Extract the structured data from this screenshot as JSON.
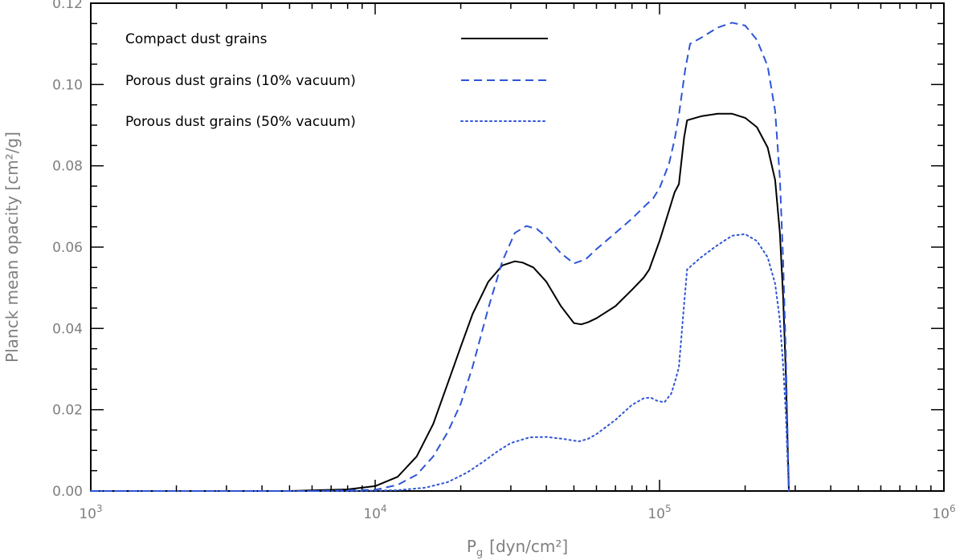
{
  "chart_data": {
    "type": "line",
    "xlabel": "P",
    "xlabel_sub": "g",
    "xlabel_unit": "[dyn/cm²]",
    "ylabel": "Planck mean opacity [cm²/g]",
    "xscale": "log",
    "xlim": [
      1000,
      1000000
    ],
    "ylim": [
      0,
      0.12
    ],
    "grid": false,
    "legend_position": "top-left",
    "x_ticks": [
      {
        "value": 1000,
        "base": "10",
        "exp": "3"
      },
      {
        "value": 10000,
        "base": "10",
        "exp": "4"
      },
      {
        "value": 100000,
        "base": "10",
        "exp": "5"
      },
      {
        "value": 1000000,
        "base": "10",
        "exp": "6"
      }
    ],
    "y_ticks": [
      {
        "value": 0.0,
        "label": "0.00"
      },
      {
        "value": 0.02,
        "label": "0.02"
      },
      {
        "value": 0.04,
        "label": "0.04"
      },
      {
        "value": 0.06,
        "label": "0.06"
      },
      {
        "value": 0.08,
        "label": "0.08"
      },
      {
        "value": 0.1,
        "label": "0.10"
      },
      {
        "value": 0.12,
        "label": "0.12"
      }
    ],
    "series": [
      {
        "name": "Compact dust grains",
        "color": "#000000",
        "dash": "solid",
        "x": [
          1000,
          5000,
          8000,
          10000,
          12000,
          14000,
          16000,
          18000,
          20000,
          22000,
          25000,
          28000,
          31000,
          33000,
          36000,
          40000,
          45000,
          50000,
          53000,
          56000,
          60000,
          70000,
          80000,
          88000,
          92000,
          100000,
          108000,
          113000,
          117000,
          122000,
          125000,
          140000,
          160000,
          180000,
          200000,
          220000,
          240000,
          255000,
          265000,
          272000,
          278000,
          282000,
          285000
        ],
        "y": [
          0.0,
          0.0,
          0.0004,
          0.0012,
          0.0035,
          0.0085,
          0.0165,
          0.0265,
          0.0355,
          0.0435,
          0.0515,
          0.0555,
          0.0565,
          0.0562,
          0.055,
          0.0515,
          0.0455,
          0.0413,
          0.041,
          0.0415,
          0.0425,
          0.0455,
          0.0495,
          0.0525,
          0.0545,
          0.0615,
          0.069,
          0.0735,
          0.0755,
          0.087,
          0.0912,
          0.0922,
          0.0928,
          0.0928,
          0.0918,
          0.0895,
          0.0845,
          0.0765,
          0.0635,
          0.048,
          0.029,
          0.012,
          0.0
        ]
      },
      {
        "name": "Porous dust grains (10% vacuum)",
        "color": "#2e55d6",
        "dash": "dashed",
        "x": [
          1000,
          6000,
          10000,
          12000,
          14000,
          16000,
          18000,
          20000,
          22000,
          25000,
          28000,
          31000,
          34000,
          37000,
          40000,
          45000,
          50000,
          55000,
          60000,
          70000,
          80000,
          90000,
          95000,
          100000,
          108000,
          113000,
          117000,
          123000,
          128000,
          140000,
          160000,
          180000,
          200000,
          220000,
          240000,
          255000,
          265000,
          272000,
          278000,
          282000,
          285000
        ],
        "y": [
          0.0,
          0.0,
          0.0003,
          0.0015,
          0.004,
          0.0085,
          0.0145,
          0.0215,
          0.0305,
          0.045,
          0.0565,
          0.0635,
          0.0652,
          0.0645,
          0.0625,
          0.0585,
          0.056,
          0.057,
          0.0595,
          0.0635,
          0.067,
          0.0705,
          0.072,
          0.0745,
          0.0805,
          0.0865,
          0.0925,
          0.1035,
          0.11,
          0.1115,
          0.114,
          0.1152,
          0.1145,
          0.111,
          0.1045,
          0.0935,
          0.077,
          0.057,
          0.034,
          0.014,
          0.0
        ]
      },
      {
        "name": "Porous dust grains (50% vacuum)",
        "color": "#2e55d6",
        "dash": "dotted",
        "x": [
          1000,
          8000,
          12000,
          15000,
          18000,
          21000,
          24000,
          27000,
          30000,
          35000,
          40000,
          46000,
          52000,
          56000,
          60000,
          70000,
          80000,
          88000,
          93000,
          98000,
          104000,
          110000,
          114000,
          117000,
          122000,
          125000,
          140000,
          160000,
          180000,
          200000,
          220000,
          240000,
          255000,
          265000,
          272000,
          278000,
          282000,
          285000
        ],
        "y": [
          0.0,
          0.0,
          0.0002,
          0.0008,
          0.0022,
          0.0045,
          0.0072,
          0.0098,
          0.0118,
          0.0132,
          0.0133,
          0.0128,
          0.0122,
          0.0128,
          0.014,
          0.0175,
          0.0212,
          0.0228,
          0.023,
          0.0222,
          0.0218,
          0.024,
          0.0275,
          0.0305,
          0.046,
          0.0545,
          0.0575,
          0.0605,
          0.0628,
          0.0632,
          0.0615,
          0.0575,
          0.051,
          0.042,
          0.031,
          0.019,
          0.0075,
          0.0
        ]
      }
    ]
  }
}
